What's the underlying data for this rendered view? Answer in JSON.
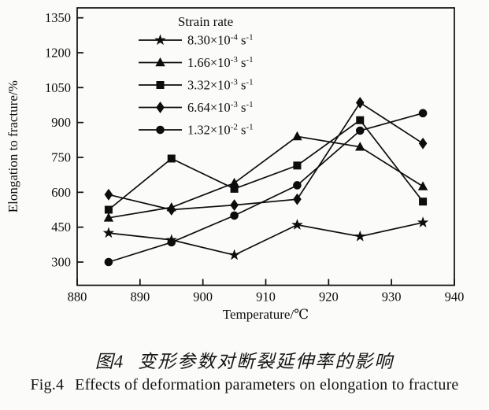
{
  "page": {
    "background": "#fbfbfa",
    "ink_color": "#0d0d0d"
  },
  "figure": {
    "caption_zh_label": "图4",
    "caption_zh_text": "变形参数对断裂延伸率的影响",
    "caption_en_label": "Fig.4",
    "caption_en_text": "Effects of deformation parameters on elongation to fracture"
  },
  "chart_data": {
    "type": "line",
    "title": "",
    "xlabel": "Temperature/℃",
    "ylabel": "Elongation to fracture/%",
    "xlim": [
      880,
      940
    ],
    "ylim": [
      200,
      1380
    ],
    "xticks": [
      880,
      890,
      900,
      910,
      920,
      930,
      940
    ],
    "yticks": [
      300,
      450,
      600,
      750,
      900,
      1050,
      1200,
      1350
    ],
    "grid": false,
    "legend_position": "top-left-inside",
    "legend_title": "Strain rate",
    "x": [
      885,
      895,
      905,
      915,
      925,
      935
    ],
    "series": [
      {
        "name": "8.30×10⁻⁴ s⁻¹",
        "coef": "8.30×10",
        "exp": "-4",
        "unit": " s",
        "unit_exp": "-1",
        "marker": "star",
        "values": [
          425,
          395,
          330,
          460,
          410,
          470
        ]
      },
      {
        "name": "1.66×10⁻³ s⁻¹",
        "coef": "1.66×10",
        "exp": "-3",
        "unit": " s",
        "unit_exp": "-1",
        "marker": "triangle",
        "values": [
          490,
          535,
          640,
          840,
          795,
          625
        ]
      },
      {
        "name": "3.32×10⁻³ s⁻¹",
        "coef": "3.32×10",
        "exp": "-3",
        "unit": " s",
        "unit_exp": "-1",
        "marker": "square",
        "values": [
          525,
          745,
          615,
          715,
          910,
          560
        ]
      },
      {
        "name": "6.64×10⁻³ s⁻¹",
        "coef": "6.64×10",
        "exp": "-3",
        "unit": " s",
        "unit_exp": "-1",
        "marker": "diamond",
        "values": [
          590,
          525,
          545,
          570,
          985,
          810
        ]
      },
      {
        "name": "1.32×10⁻² s⁻¹",
        "coef": "1.32×10",
        "exp": "-2",
        "unit": " s",
        "unit_exp": "-1",
        "marker": "circle",
        "values": [
          300,
          385,
          500,
          630,
          865,
          940
        ]
      }
    ]
  }
}
